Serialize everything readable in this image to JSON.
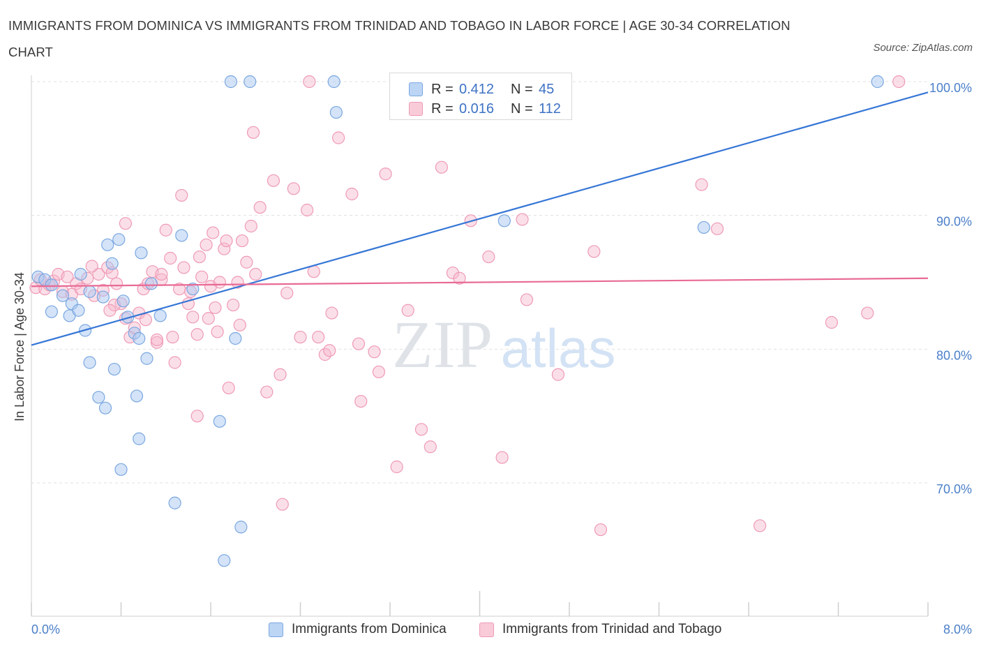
{
  "header": {
    "title": "IMMIGRANTS FROM DOMINICA VS IMMIGRANTS FROM TRINIDAD AND TOBAGO IN LABOR FORCE | AGE 30-34 CORRELATION CHART",
    "source": "Source: ZipAtlas.com"
  },
  "legend": {
    "rows": [
      {
        "r_label": "R =",
        "r_value": "0.412",
        "n_label": "N =",
        "n_value": "45"
      },
      {
        "r_label": "R =",
        "r_value": "0.016",
        "n_label": "N =",
        "n_value": "112"
      }
    ]
  },
  "bottom_legend": {
    "items": [
      "Immigrants from Dominica",
      "Immigrants from Trinidad and Tobago"
    ]
  },
  "watermark": {
    "zip": "ZIP",
    "atlas": "atlas"
  },
  "colors": {
    "blue_fill": "#a9c8f2",
    "blue_stroke": "#7aa7e0",
    "blue_line": "#3576d6",
    "pink_fill": "#f6b8cc",
    "pink_stroke": "#ee9ab5",
    "pink_line": "#e86a95",
    "grid": "#e0e0e0",
    "tick_label": "#4a7fc8"
  },
  "chart_data": {
    "type": "scatter",
    "title": "IMMIGRANTS FROM DOMINICA VS IMMIGRANTS FROM TRINIDAD AND TOBAGO IN LABOR FORCE | AGE 30-34 CORRELATION CHART",
    "xlabel": "",
    "ylabel": "In Labor Force | Age 30-34",
    "xlim": [
      0.0,
      8.0
    ],
    "ylim": [
      60.0,
      100.0
    ],
    "x_tick_labels": [
      "0.0%",
      "8.0%"
    ],
    "y_ticks": [
      70,
      80,
      90,
      100
    ],
    "y_tick_labels": [
      "70.0%",
      "80.0%",
      "90.0%",
      "100.0%"
    ],
    "grid": true,
    "legend_position": "top-center",
    "series": [
      {
        "name": "Immigrants from Dominica",
        "color": "#a9c8f2",
        "trend": {
          "x": [
            0.0,
            8.0
          ],
          "y": [
            80.3,
            99.2
          ]
        },
        "points": [
          [
            0.06,
            85.4
          ],
          [
            0.12,
            85.2
          ],
          [
            0.18,
            84.8
          ],
          [
            0.28,
            84.0
          ],
          [
            0.36,
            83.4
          ],
          [
            0.18,
            82.8
          ],
          [
            0.34,
            82.5
          ],
          [
            0.42,
            82.9
          ],
          [
            0.44,
            85.6
          ],
          [
            0.52,
            84.3
          ],
          [
            0.48,
            81.4
          ],
          [
            0.52,
            79.0
          ],
          [
            0.6,
            76.4
          ],
          [
            0.66,
            75.6
          ],
          [
            0.74,
            78.5
          ],
          [
            0.64,
            83.9
          ],
          [
            0.72,
            86.4
          ],
          [
            0.78,
            88.2
          ],
          [
            0.8,
            71.0
          ],
          [
            0.82,
            83.6
          ],
          [
            0.86,
            82.4
          ],
          [
            0.92,
            81.2
          ],
          [
            0.94,
            76.5
          ],
          [
            0.96,
            73.3
          ],
          [
            0.98,
            87.2
          ],
          [
            1.03,
            79.3
          ],
          [
            1.07,
            84.9
          ],
          [
            1.15,
            82.5
          ],
          [
            1.34,
            88.5
          ],
          [
            1.44,
            84.5
          ],
          [
            1.68,
            74.6
          ],
          [
            1.82,
            80.8
          ],
          [
            1.87,
            66.7
          ],
          [
            1.95,
            100.0
          ],
          [
            2.7,
            100.0
          ],
          [
            2.72,
            97.7
          ],
          [
            4.22,
            89.6
          ],
          [
            4.52,
            100.0
          ],
          [
            6.0,
            89.1
          ],
          [
            7.55,
            100.0
          ],
          [
            1.78,
            100.0
          ],
          [
            0.68,
            87.8
          ],
          [
            0.96,
            80.8
          ],
          [
            1.28,
            68.5
          ],
          [
            1.72,
            64.2
          ]
        ]
      },
      {
        "name": "Immigrants from Trinidad and Tobago",
        "color": "#f6b8cc",
        "trend": {
          "x": [
            0.0,
            8.0
          ],
          "y": [
            84.7,
            85.3
          ]
        },
        "points": [
          [
            0.04,
            84.6
          ],
          [
            0.08,
            85.2
          ],
          [
            0.12,
            84.5
          ],
          [
            0.16,
            84.8
          ],
          [
            0.2,
            85.1
          ],
          [
            0.24,
            85.6
          ],
          [
            0.28,
            84.3
          ],
          [
            0.32,
            85.4
          ],
          [
            0.36,
            84.1
          ],
          [
            0.4,
            84.9
          ],
          [
            0.44,
            84.5
          ],
          [
            0.5,
            85.3
          ],
          [
            0.56,
            84.0
          ],
          [
            0.6,
            85.6
          ],
          [
            0.64,
            84.4
          ],
          [
            0.68,
            86.1
          ],
          [
            0.72,
            85.7
          ],
          [
            0.76,
            84.9
          ],
          [
            0.8,
            83.4
          ],
          [
            0.84,
            82.3
          ],
          [
            0.88,
            80.9
          ],
          [
            0.92,
            81.6
          ],
          [
            0.96,
            82.7
          ],
          [
            1.0,
            84.5
          ],
          [
            1.04,
            84.9
          ],
          [
            1.08,
            85.8
          ],
          [
            1.12,
            80.5
          ],
          [
            1.16,
            85.2
          ],
          [
            1.2,
            88.9
          ],
          [
            1.24,
            86.8
          ],
          [
            1.28,
            79.0
          ],
          [
            1.32,
            84.5
          ],
          [
            1.36,
            86.1
          ],
          [
            1.4,
            83.4
          ],
          [
            1.44,
            82.4
          ],
          [
            1.48,
            81.1
          ],
          [
            1.52,
            85.4
          ],
          [
            1.56,
            87.8
          ],
          [
            1.6,
            84.7
          ],
          [
            1.64,
            83.1
          ],
          [
            1.68,
            85.0
          ],
          [
            1.72,
            87.5
          ],
          [
            1.76,
            77.1
          ],
          [
            1.8,
            83.3
          ],
          [
            1.84,
            85.0
          ],
          [
            1.88,
            88.1
          ],
          [
            1.92,
            86.5
          ],
          [
            1.96,
            89.2
          ],
          [
            2.0,
            85.6
          ],
          [
            2.04,
            90.6
          ],
          [
            2.1,
            76.8
          ],
          [
            2.16,
            92.6
          ],
          [
            2.22,
            78.1
          ],
          [
            2.28,
            84.2
          ],
          [
            2.34,
            92.0
          ],
          [
            2.4,
            80.9
          ],
          [
            2.46,
            90.4
          ],
          [
            2.52,
            85.8
          ],
          [
            2.56,
            80.9
          ],
          [
            2.62,
            79.6
          ],
          [
            2.68,
            82.7
          ],
          [
            2.74,
            95.8
          ],
          [
            2.86,
            91.6
          ],
          [
            2.94,
            76.1
          ],
          [
            3.06,
            79.8
          ],
          [
            3.16,
            93.1
          ],
          [
            3.26,
            71.2
          ],
          [
            3.36,
            82.9
          ],
          [
            3.48,
            74.0
          ],
          [
            3.56,
            72.7
          ],
          [
            3.66,
            93.6
          ],
          [
            3.76,
            85.7
          ],
          [
            3.82,
            85.3
          ],
          [
            3.92,
            89.6
          ],
          [
            4.08,
            86.9
          ],
          [
            4.2,
            71.9
          ],
          [
            4.38,
            89.7
          ],
          [
            4.42,
            83.7
          ],
          [
            4.7,
            78.1
          ],
          [
            5.02,
            87.3
          ],
          [
            5.08,
            66.5
          ],
          [
            5.98,
            92.3
          ],
          [
            6.12,
            89.0
          ],
          [
            6.5,
            66.8
          ],
          [
            7.14,
            82.0
          ],
          [
            7.46,
            82.7
          ],
          [
            7.74,
            100.0
          ],
          [
            3.28,
            100.0
          ],
          [
            4.46,
            100.0
          ],
          [
            2.48,
            100.0
          ],
          [
            0.84,
            89.4
          ],
          [
            1.12,
            80.7
          ],
          [
            1.34,
            91.5
          ],
          [
            1.98,
            96.2
          ],
          [
            1.5,
            86.9
          ],
          [
            1.62,
            88.7
          ],
          [
            1.66,
            81.3
          ],
          [
            0.74,
            83.3
          ],
          [
            0.54,
            86.2
          ],
          [
            0.7,
            82.9
          ],
          [
            1.02,
            82.2
          ],
          [
            1.16,
            85.6
          ],
          [
            1.26,
            80.9
          ],
          [
            1.42,
            84.3
          ],
          [
            1.48,
            75.0
          ],
          [
            1.58,
            82.3
          ],
          [
            1.74,
            88.1
          ],
          [
            1.86,
            81.8
          ],
          [
            2.24,
            68.4
          ],
          [
            2.66,
            79.9
          ],
          [
            2.92,
            80.4
          ],
          [
            3.1,
            78.3
          ]
        ]
      }
    ]
  }
}
